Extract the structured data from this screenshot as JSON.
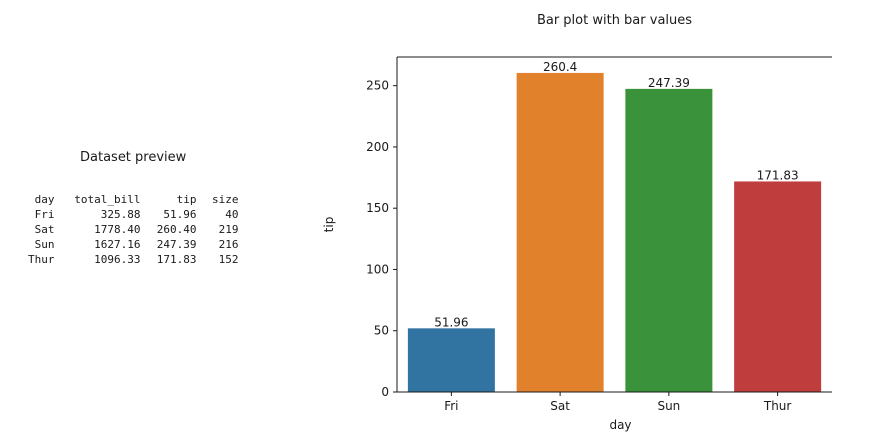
{
  "preview": {
    "title": "Dataset preview",
    "columns": [
      "day",
      "total_bill",
      "tip",
      "size"
    ],
    "rows": [
      [
        "Fri",
        "325.88",
        "51.96",
        "40"
      ],
      [
        "Sat",
        "1778.40",
        "260.40",
        "219"
      ],
      [
        "Sun",
        "1627.16",
        "247.39",
        "216"
      ],
      [
        "Thur",
        "1096.33",
        "171.83",
        "152"
      ]
    ]
  },
  "chart_data": {
    "type": "bar",
    "title": "Bar plot with bar values",
    "xlabel": "day",
    "ylabel": "tip",
    "categories": [
      "Fri",
      "Sat",
      "Sun",
      "Thur"
    ],
    "values": [
      51.96,
      260.4,
      247.39,
      171.83
    ],
    "value_labels": [
      "51.96",
      "260.4",
      "247.39",
      "171.83"
    ],
    "colors": [
      "#3274a1",
      "#e1812c",
      "#3a923a",
      "#c03d3e"
    ],
    "ylim": [
      0,
      273.4
    ],
    "yticks": [
      0,
      50,
      100,
      150,
      200,
      250
    ],
    "ytick_labels": [
      "0",
      "50",
      "100",
      "150",
      "200",
      "250"
    ],
    "grid": false
  }
}
